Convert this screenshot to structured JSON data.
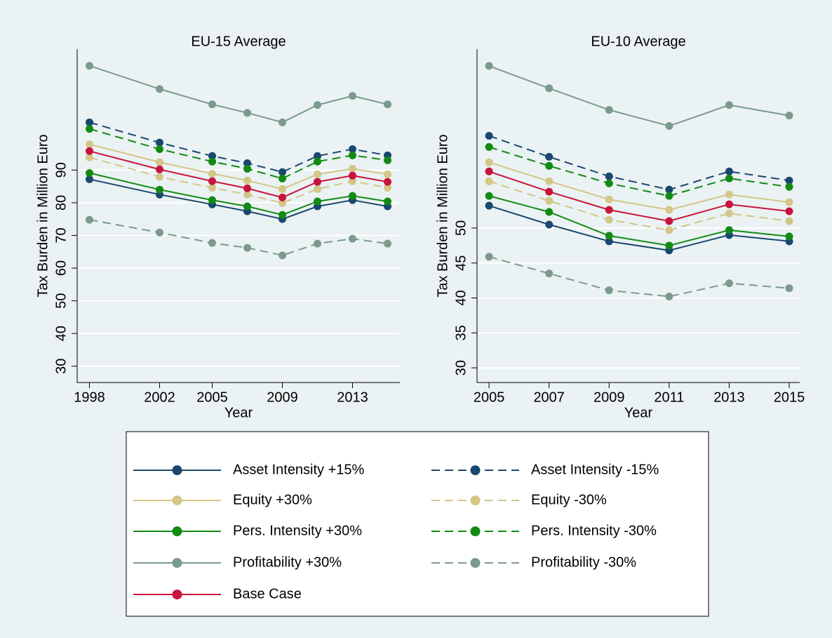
{
  "chart_data": [
    {
      "type": "line",
      "title": "EU-15 Average",
      "xlabel": "Year",
      "ylabel": "Tax Burden in Million Euro",
      "x": [
        1998,
        2002,
        2005,
        2007,
        2009,
        2011,
        2013,
        2015
      ],
      "xlim": [
        1997.3,
        2015.7
      ],
      "xticks": [
        1998,
        2002,
        2005,
        2009,
        2013
      ],
      "ylim": [
        25,
        127
      ],
      "yticks": [
        30,
        40,
        50,
        60,
        70,
        80,
        90
      ],
      "grid": true,
      "series": [
        {
          "name": "Asset Intensity +15%",
          "color": "#1a476f",
          "dashed": false,
          "values": [
            87.2,
            82.5,
            79.5,
            77.4,
            75.0,
            78.9,
            80.8,
            78.9
          ]
        },
        {
          "name": "Asset Intensity -15%",
          "color": "#1a476f",
          "dashed": true,
          "values": [
            104.6,
            98.4,
            94.3,
            92.1,
            89.4,
            94.3,
            96.4,
            94.5
          ]
        },
        {
          "name": "Equity +30%",
          "color": "#d3c687",
          "dashed": false,
          "values": [
            97.9,
            92.4,
            88.9,
            86.8,
            84.2,
            88.7,
            90.4,
            88.7
          ]
        },
        {
          "name": "Equity -30%",
          "color": "#d3c687",
          "dashed": true,
          "values": [
            93.9,
            87.9,
            84.6,
            82.5,
            79.9,
            84.2,
            86.6,
            84.6
          ]
        },
        {
          "name": "Pers. Intensity +30%",
          "color": "#138a13",
          "dashed": false,
          "values": [
            89.1,
            84.0,
            80.8,
            78.9,
            76.3,
            80.4,
            82.1,
            80.4
          ]
        },
        {
          "name": "Pers. Intensity -30%",
          "color": "#138a13",
          "dashed": true,
          "values": [
            102.6,
            96.4,
            92.6,
            90.4,
            87.4,
            92.6,
            94.5,
            93.0
          ]
        },
        {
          "name": "Profitability +30%",
          "color": "#7b9a8c",
          "dashed": false,
          "values": [
            121.9,
            114.8,
            110.1,
            107.5,
            104.6,
            109.9,
            112.7,
            110.1
          ]
        },
        {
          "name": "Profitability -30%",
          "color": "#7b9a8c",
          "dashed": true,
          "values": [
            74.8,
            70.9,
            67.7,
            66.2,
            63.9,
            67.5,
            69.0,
            67.5
          ]
        },
        {
          "name": "Base Case",
          "color": "#c8143c",
          "dashed": false,
          "values": [
            95.8,
            90.2,
            86.6,
            84.4,
            81.6,
            86.4,
            88.3,
            86.4
          ]
        }
      ]
    },
    {
      "type": "line",
      "title": "EU-10 Average",
      "xlabel": "Year",
      "ylabel": "Tax Burden in Million Euro",
      "x": [
        2005,
        2007,
        2009,
        2011,
        2013,
        2015
      ],
      "xlim": [
        2004.6,
        2015.35
      ],
      "xticks": [
        2005,
        2007,
        2009,
        2011,
        2013,
        2015
      ],
      "ylim": [
        27.9,
        75.6
      ],
      "yticks": [
        30,
        35,
        40,
        45,
        50
      ],
      "grid": true,
      "series": [
        {
          "color": "#1a476f",
          "dashed": false,
          "values": [
            53.2,
            50.5,
            48.1,
            46.8,
            49.0,
            48.1
          ]
        },
        {
          "color": "#1a476f",
          "dashed": true,
          "values": [
            63.2,
            60.2,
            57.4,
            55.5,
            58.1,
            56.8
          ]
        },
        {
          "color": "#d3c687",
          "dashed": false,
          "values": [
            59.4,
            56.7,
            54.1,
            52.6,
            54.8,
            53.7
          ]
        },
        {
          "color": "#d3c687",
          "dashed": true,
          "values": [
            56.7,
            53.9,
            51.2,
            49.7,
            52.1,
            51.0
          ]
        },
        {
          "color": "#138a13",
          "dashed": false,
          "values": [
            54.6,
            52.3,
            48.9,
            47.5,
            49.7,
            48.8
          ]
        },
        {
          "color": "#138a13",
          "dashed": true,
          "values": [
            61.6,
            58.9,
            56.4,
            54.6,
            57.1,
            55.9
          ]
        },
        {
          "color": "#7b9a8c",
          "dashed": false,
          "values": [
            73.2,
            70.0,
            66.9,
            64.6,
            67.6,
            66.1
          ]
        },
        {
          "color": "#7b9a8c",
          "dashed": true,
          "values": [
            45.9,
            43.5,
            41.1,
            40.2,
            42.1,
            41.4
          ]
        },
        {
          "color": "#c8143c",
          "dashed": false,
          "values": [
            58.1,
            55.2,
            52.6,
            51.0,
            53.4,
            52.4
          ]
        }
      ]
    }
  ]
}
